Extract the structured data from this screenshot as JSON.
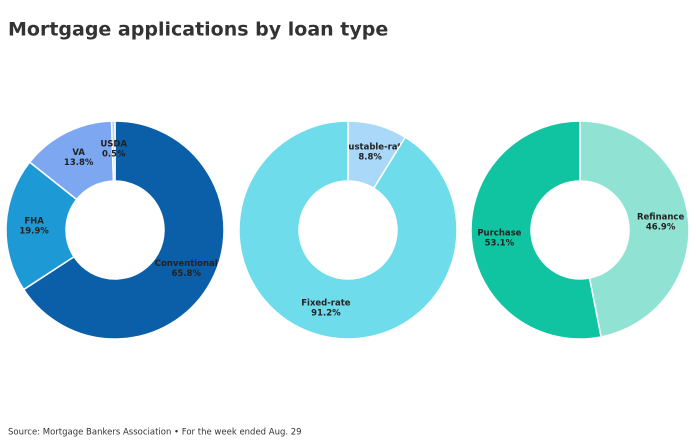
{
  "title": "Mortgage applications by loan type",
  "source": "Source: Mortgage Bankers Association • For the week ended Aug. 29",
  "chart_data": [
    {
      "type": "donut",
      "categories": [
        "Conventional",
        "FHA",
        "VA",
        "USDA"
      ],
      "values": [
        65.8,
        19.9,
        13.8,
        0.5
      ],
      "value_labels": [
        "65.8%",
        "19.9%",
        "13.8%",
        "0.5%"
      ],
      "colors": [
        "#0b5ea8",
        "#1d9ad6",
        "#7ea7f2",
        "#a9d3f7"
      ]
    },
    {
      "type": "donut",
      "categories": [
        "Adjustable-rate",
        "Fixed-rate"
      ],
      "values": [
        8.8,
        91.2
      ],
      "value_labels": [
        "8.8%",
        "91.2%"
      ],
      "colors": [
        "#a9d8f8",
        "#6fdcec"
      ]
    },
    {
      "type": "donut",
      "categories": [
        "Refinance",
        "Purchase"
      ],
      "values": [
        46.9,
        53.1
      ],
      "value_labels": [
        "46.9%",
        "53.1%"
      ],
      "colors": [
        "#90e3d3",
        "#10c4a1"
      ]
    }
  ]
}
